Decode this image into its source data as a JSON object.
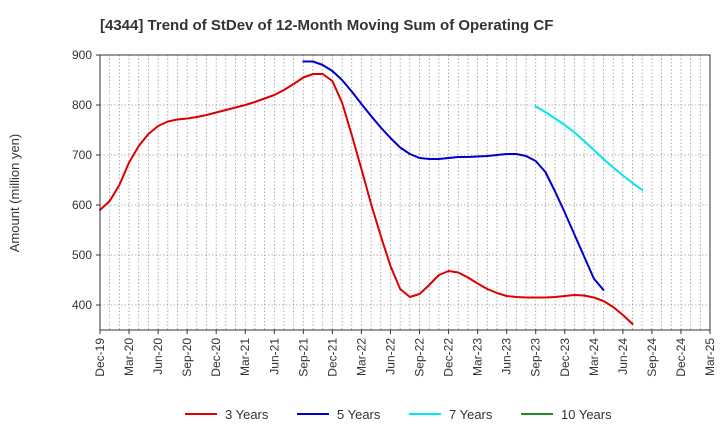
{
  "chart_data": {
    "type": "line",
    "title": "[4344]  Trend of StDev of 12-Month Moving Sum of Operating CF",
    "ylabel": "Amount (million yen)",
    "xlabel": "",
    "ylim": [
      350,
      900
    ],
    "yticks": [
      400,
      500,
      600,
      700,
      800,
      900
    ],
    "x_tick_labels": [
      "Dec-19",
      "Mar-20",
      "Jun-20",
      "Sep-20",
      "Dec-20",
      "Mar-21",
      "Jun-21",
      "Sep-21",
      "Dec-21",
      "Mar-22",
      "Jun-22",
      "Sep-22",
      "Dec-22",
      "Mar-23",
      "Jun-23",
      "Sep-23",
      "Dec-23",
      "Mar-24",
      "Jun-24",
      "Sep-24",
      "Dec-24",
      "Mar-25"
    ],
    "x_months": [
      "2019-12",
      "2020-01",
      "2020-02",
      "2020-03",
      "2020-04",
      "2020-05",
      "2020-06",
      "2020-07",
      "2020-08",
      "2020-09",
      "2020-10",
      "2020-11",
      "2020-12",
      "2021-01",
      "2021-02",
      "2021-03",
      "2021-04",
      "2021-05",
      "2021-06",
      "2021-07",
      "2021-08",
      "2021-09",
      "2021-10",
      "2021-11",
      "2021-12",
      "2022-01",
      "2022-02",
      "2022-03",
      "2022-04",
      "2022-05",
      "2022-06",
      "2022-07",
      "2022-08",
      "2022-09",
      "2022-10",
      "2022-11",
      "2022-12",
      "2023-01",
      "2023-02",
      "2023-03",
      "2023-04",
      "2023-05",
      "2023-06",
      "2023-07",
      "2023-08",
      "2023-09",
      "2023-10",
      "2023-11",
      "2023-12",
      "2024-01",
      "2024-02",
      "2024-03",
      "2024-04",
      "2024-05",
      "2024-06",
      "2024-07",
      "2024-08",
      "2024-09",
      "2024-10",
      "2024-11",
      "2024-12",
      "2025-01",
      "2025-02",
      "2025-03"
    ],
    "grid": true,
    "legend_position": "bottom",
    "series": [
      {
        "name": "3 Years",
        "color": "#dd0000",
        "values": [
          590,
          608,
          640,
          685,
          718,
          742,
          758,
          767,
          771,
          773,
          776,
          780,
          785,
          790,
          795,
          800,
          806,
          813,
          820,
          830,
          842,
          855,
          862,
          862,
          848,
          805,
          740,
          672,
          602,
          538,
          478,
          432,
          416,
          422,
          440,
          460,
          468,
          465,
          455,
          443,
          432,
          424,
          418,
          416,
          415,
          415,
          415,
          416,
          418,
          420,
          419,
          415,
          408,
          396,
          380,
          362,
          null,
          null,
          null,
          null,
          null,
          null,
          null,
          null
        ]
      },
      {
        "name": "5 Years",
        "color": "#0000cc",
        "values": [
          null,
          null,
          null,
          null,
          null,
          null,
          null,
          null,
          null,
          null,
          null,
          null,
          null,
          null,
          null,
          null,
          null,
          null,
          null,
          null,
          null,
          887,
          887,
          880,
          868,
          850,
          827,
          802,
          778,
          755,
          734,
          715,
          702,
          694,
          692,
          692,
          694,
          696,
          696,
          697,
          698,
          700,
          702,
          702,
          698,
          688,
          666,
          627,
          585,
          541,
          497,
          453,
          430,
          null,
          null,
          null,
          null,
          null,
          null,
          null,
          null,
          null,
          null,
          null
        ]
      },
      {
        "name": "7 Years",
        "color": "#00e5ee",
        "values": [
          null,
          null,
          null,
          null,
          null,
          null,
          null,
          null,
          null,
          null,
          null,
          null,
          null,
          null,
          null,
          null,
          null,
          null,
          null,
          null,
          null,
          null,
          null,
          null,
          null,
          null,
          null,
          null,
          null,
          null,
          null,
          null,
          null,
          null,
          null,
          null,
          null,
          null,
          null,
          null,
          null,
          null,
          null,
          null,
          null,
          797,
          786,
          773,
          760,
          745,
          728,
          710,
          692,
          675,
          659,
          644,
          630,
          null,
          null,
          null,
          null,
          null,
          null,
          null
        ]
      },
      {
        "name": "10 Years",
        "color": "#228b22",
        "values": []
      }
    ]
  }
}
